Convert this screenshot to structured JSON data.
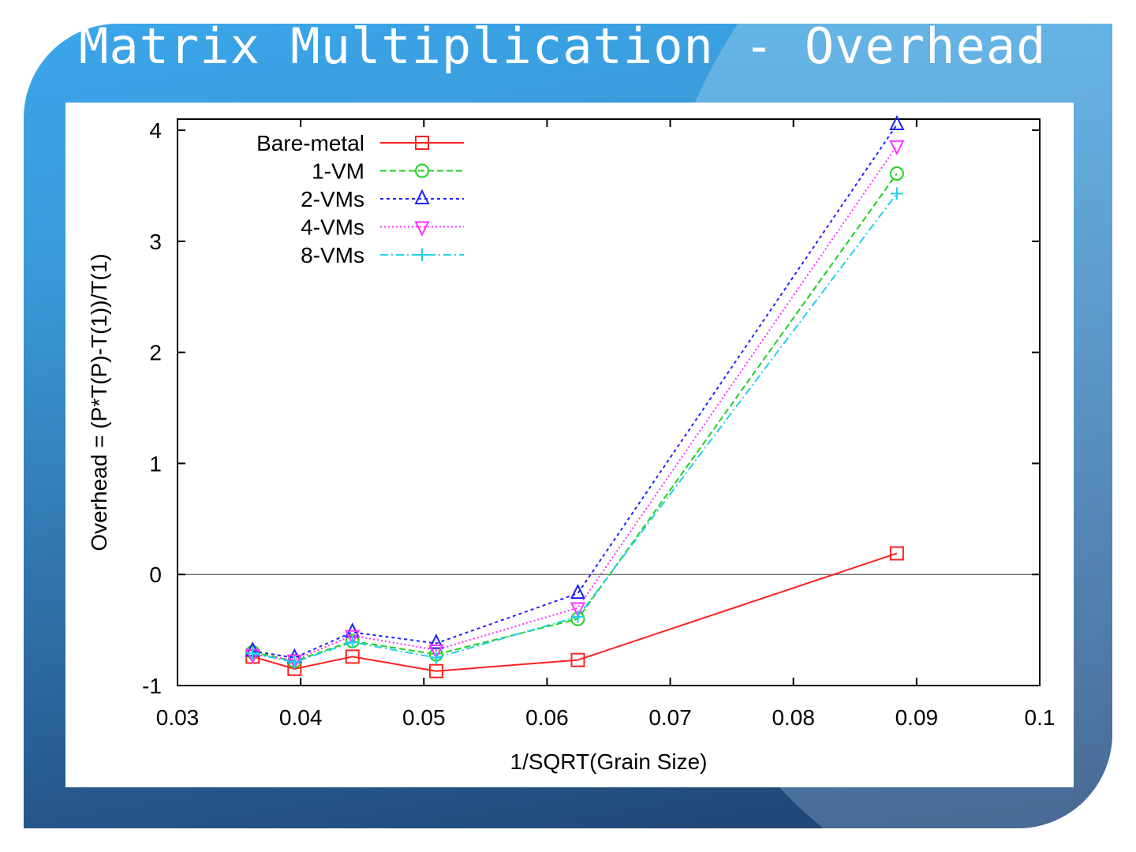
{
  "slide": {
    "title": "Matrix Multiplication - Overhead"
  },
  "chart_data": {
    "type": "line",
    "title": "",
    "xlabel": "1/SQRT(Grain Size)",
    "ylabel": "Overhead = (P*T(P)-T(1))/T(1)",
    "xlim": [
      0.03,
      0.1
    ],
    "ylim": [
      -1,
      4.1
    ],
    "xticks": [
      "0.03",
      "0.04",
      "0.05",
      "0.06",
      "0.07",
      "0.08",
      "0.09",
      "0.1"
    ],
    "yticks": [
      "-1",
      "0",
      "1",
      "2",
      "3",
      "4"
    ],
    "xtick_values": [
      0.03,
      0.04,
      0.05,
      0.06,
      0.07,
      0.08,
      0.09,
      0.1
    ],
    "ytick_values": [
      -1,
      0,
      1,
      2,
      3,
      4
    ],
    "grid": false,
    "reference_line_y": 0,
    "legend_position": "top-left",
    "x": [
      0.0361,
      0.0395,
      0.0442,
      0.051,
      0.0625,
      0.0884
    ],
    "series": [
      {
        "name": "Bare-metal",
        "color": "#ff2020",
        "marker": "square",
        "dash": "",
        "values": [
          -0.74,
          -0.85,
          -0.74,
          -0.87,
          -0.77,
          0.19
        ]
      },
      {
        "name": "1-VM",
        "color": "#20d020",
        "marker": "circle",
        "dash": "8,4",
        "values": [
          -0.7,
          -0.78,
          -0.6,
          -0.72,
          -0.4,
          3.61
        ]
      },
      {
        "name": "2-VMs",
        "color": "#2020ff",
        "marker": "triangle",
        "dash": "4,4",
        "values": [
          -0.69,
          -0.75,
          -0.52,
          -0.62,
          -0.17,
          4.05
        ]
      },
      {
        "name": "4-VMs",
        "color": "#ff30ff",
        "marker": "triangle-down",
        "dash": "2,3",
        "values": [
          -0.72,
          -0.77,
          -0.55,
          -0.68,
          -0.3,
          3.86
        ]
      },
      {
        "name": "8-VMs",
        "color": "#20d0e8",
        "marker": "plus",
        "dash": "10,4,2,4",
        "values": [
          -0.71,
          -0.79,
          -0.61,
          -0.75,
          -0.38,
          3.43
        ]
      }
    ]
  }
}
